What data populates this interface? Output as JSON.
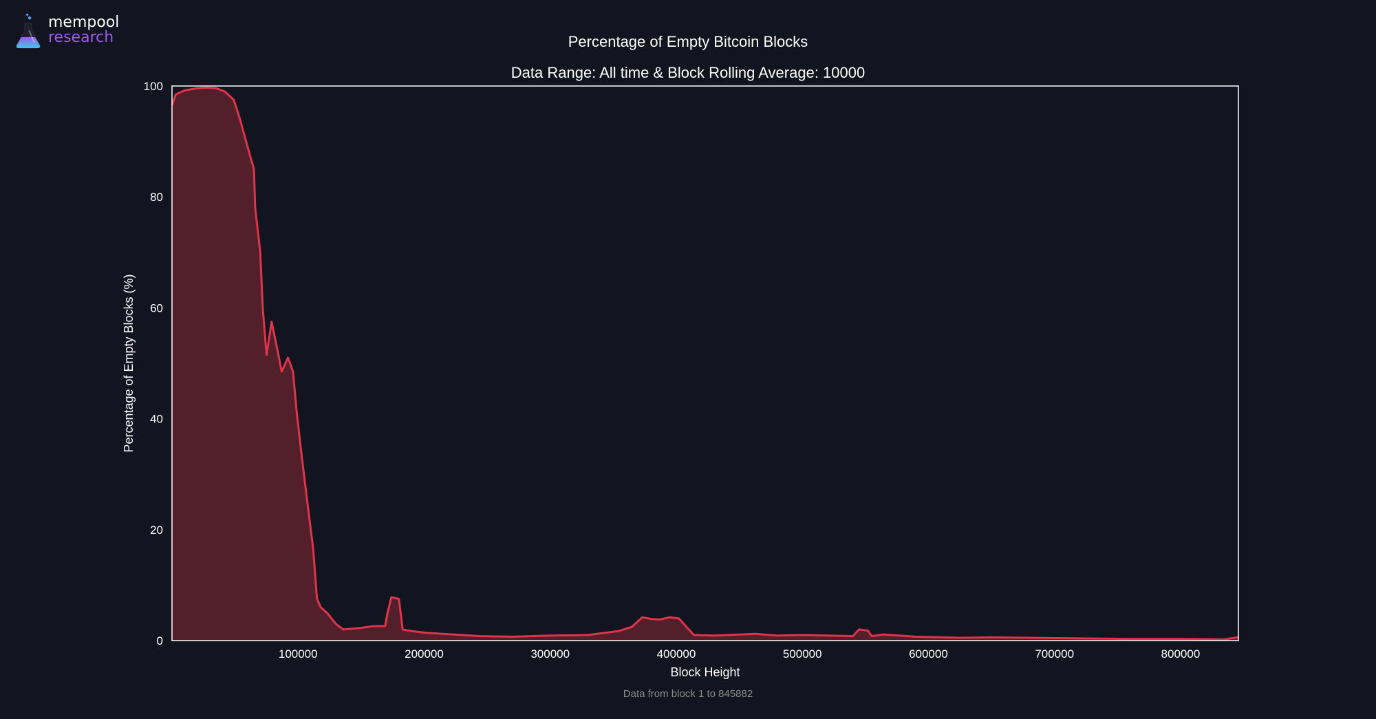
{
  "branding": {
    "top": "mempool",
    "bottom": "research"
  },
  "colors": {
    "background": "#121420",
    "line": "#e0344a",
    "fill": "#521f2b",
    "axes": "#ffffff",
    "logo_purple": "#9b5cf0"
  },
  "footnote": "Data from block 1 to 845882",
  "chart_data": {
    "type": "area",
    "title": "Percentage of Empty Bitcoin Blocks",
    "subtitle": "Data Range: All time & Block Rolling Average: 10000",
    "xlabel": "Block Height",
    "ylabel": "Percentage of Empty Blocks (%)",
    "xlim": [
      1,
      845882
    ],
    "ylim": [
      0,
      100
    ],
    "xticks": [
      100000,
      200000,
      300000,
      400000,
      500000,
      600000,
      700000,
      800000
    ],
    "yticks": [
      0,
      20,
      40,
      60,
      80,
      100
    ],
    "grid": false,
    "legend": null,
    "x": [
      1,
      3000,
      10000,
      20000,
      27000,
      35000,
      42000,
      49000,
      54000,
      60000,
      65000,
      66000,
      70000,
      72000,
      75000,
      79000,
      84000,
      87000,
      92000,
      96000,
      99000,
      102000,
      106000,
      112000,
      115000,
      118000,
      123000,
      130000,
      136000,
      150000,
      160000,
      169000,
      171000,
      174000,
      180000,
      183000,
      190000,
      202000,
      215000,
      245000,
      270000,
      300000,
      330000,
      354000,
      365000,
      373000,
      380000,
      387000,
      395000,
      402000,
      408000,
      414000,
      430000,
      463000,
      480000,
      500000,
      540000,
      545000,
      552000,
      555000,
      564000,
      590000,
      627000,
      650000,
      680000,
      714000,
      760000,
      800000,
      834000,
      845882
    ],
    "values": [
      96.5,
      98.5,
      99.2,
      99.6,
      99.7,
      99.6,
      99.0,
      97.5,
      94.0,
      89.0,
      85.0,
      78.0,
      70.0,
      60.0,
      51.5,
      57.5,
      52.0,
      48.5,
      51.0,
      48.5,
      41.0,
      35.0,
      27.5,
      16.5,
      7.5,
      6.0,
      5.0,
      3.0,
      2.0,
      2.3,
      2.6,
      2.6,
      5.0,
      7.8,
      7.5,
      2.0,
      1.7,
      1.4,
      1.2,
      0.8,
      0.7,
      0.9,
      1.0,
      1.7,
      2.5,
      4.2,
      3.9,
      3.8,
      4.2,
      4.0,
      2.5,
      1.0,
      0.9,
      1.2,
      0.9,
      1.0,
      0.8,
      2.0,
      1.8,
      0.8,
      1.1,
      0.7,
      0.5,
      0.6,
      0.5,
      0.4,
      0.3,
      0.3,
      0.2,
      0.6
    ]
  }
}
